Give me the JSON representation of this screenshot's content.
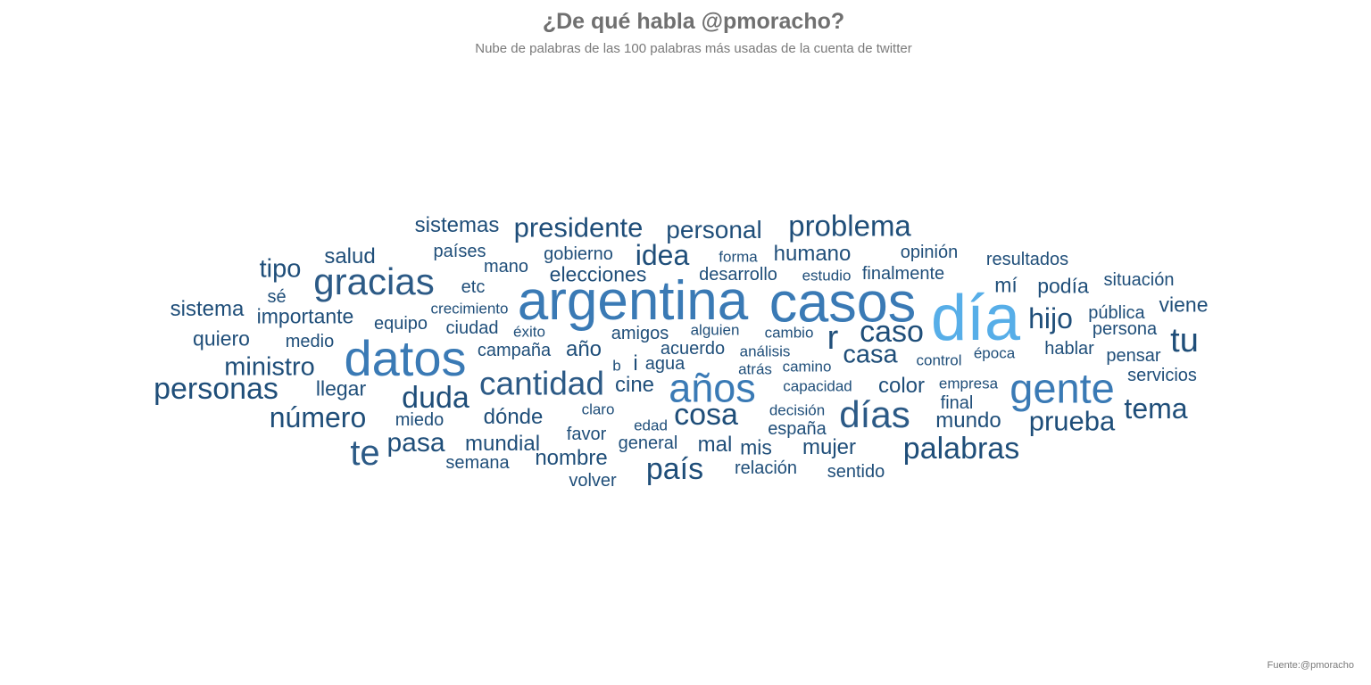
{
  "title": "¿De qué habla @pmoracho?",
  "subtitle": "Nube de palabras de las 100 palabras más usadas de la cuenta de twitter",
  "source": "Fuente:@pmoracho",
  "colors": {
    "text": "#707070",
    "dark": "#1f4e79",
    "mid": "#3a7ab5",
    "light": "#57aee8"
  },
  "chart_data": {
    "type": "wordcloud",
    "words": [
      {
        "text": "día",
        "weight": 100
      },
      {
        "text": "casos",
        "weight": 88
      },
      {
        "text": "argentina",
        "weight": 86
      },
      {
        "text": "datos",
        "weight": 78
      },
      {
        "text": "gente",
        "weight": 65
      },
      {
        "text": "años",
        "weight": 62
      },
      {
        "text": "gracias",
        "weight": 58
      },
      {
        "text": "días",
        "weight": 58
      },
      {
        "text": "te",
        "weight": 56
      },
      {
        "text": "cantidad",
        "weight": 52
      },
      {
        "text": "personas",
        "weight": 48
      },
      {
        "text": "cosa",
        "weight": 48
      },
      {
        "text": "país",
        "weight": 48
      },
      {
        "text": "palabras",
        "weight": 48
      },
      {
        "text": "tu",
        "weight": 48
      },
      {
        "text": "duda",
        "weight": 46
      },
      {
        "text": "caso",
        "weight": 46
      },
      {
        "text": "problema",
        "weight": 46
      },
      {
        "text": "r",
        "weight": 46
      },
      {
        "text": "número",
        "weight": 44
      },
      {
        "text": "idea",
        "weight": 44
      },
      {
        "text": "tema",
        "weight": 44
      },
      {
        "text": "presidente",
        "weight": 42
      },
      {
        "text": "hijo",
        "weight": 42
      },
      {
        "text": "prueba",
        "weight": 42
      },
      {
        "text": "pasa",
        "weight": 40
      },
      {
        "text": "casa",
        "weight": 40
      },
      {
        "text": "ministro",
        "weight": 40
      },
      {
        "text": "tipo",
        "weight": 40
      },
      {
        "text": "personal",
        "weight": 38
      },
      {
        "text": "dónde",
        "weight": 36
      },
      {
        "text": "año",
        "weight": 36
      },
      {
        "text": "humano",
        "weight": 34
      },
      {
        "text": "mundial",
        "weight": 34
      },
      {
        "text": "nombre",
        "weight": 34
      },
      {
        "text": "salud",
        "weight": 34
      },
      {
        "text": "color",
        "weight": 34
      },
      {
        "text": "mujer",
        "weight": 34
      },
      {
        "text": "mundo",
        "weight": 34
      },
      {
        "text": "cine",
        "weight": 34
      },
      {
        "text": "sistema",
        "weight": 34
      },
      {
        "text": "sistemas",
        "weight": 34
      },
      {
        "text": "mal",
        "weight": 34
      },
      {
        "text": "i",
        "weight": 34
      },
      {
        "text": "elecciones",
        "weight": 32
      },
      {
        "text": "importante",
        "weight": 32
      },
      {
        "text": "llegar",
        "weight": 32
      },
      {
        "text": "quiero",
        "weight": 32
      },
      {
        "text": "podía",
        "weight": 32
      },
      {
        "text": "viene",
        "weight": 32
      },
      {
        "text": "mí",
        "weight": 32
      },
      {
        "text": "mis",
        "weight": 32
      },
      {
        "text": "desarrollo",
        "weight": 30
      },
      {
        "text": "finalmente",
        "weight": 30
      },
      {
        "text": "semana",
        "weight": 30
      },
      {
        "text": "volver",
        "weight": 30
      },
      {
        "text": "campaña",
        "weight": 30
      },
      {
        "text": "ciudad",
        "weight": 30
      },
      {
        "text": "amigos",
        "weight": 30
      },
      {
        "text": "acuerdo",
        "weight": 30
      },
      {
        "text": "general",
        "weight": 30
      },
      {
        "text": "favor",
        "weight": 30
      },
      {
        "text": "gobierno",
        "weight": 30
      },
      {
        "text": "países",
        "weight": 30
      },
      {
        "text": "resultados",
        "weight": 30
      },
      {
        "text": "situación",
        "weight": 30
      },
      {
        "text": "pensar",
        "weight": 30
      },
      {
        "text": "hablar",
        "weight": 30
      },
      {
        "text": "relación",
        "weight": 30
      },
      {
        "text": "sentido",
        "weight": 30
      },
      {
        "text": "españa",
        "weight": 30
      },
      {
        "text": "opinión",
        "weight": 30
      },
      {
        "text": "persona",
        "weight": 30
      },
      {
        "text": "pública",
        "weight": 30
      },
      {
        "text": "servicios",
        "weight": 30
      },
      {
        "text": "equipo",
        "weight": 30
      },
      {
        "text": "medio",
        "weight": 30
      },
      {
        "text": "miedo",
        "weight": 30
      },
      {
        "text": "mano",
        "weight": 30
      },
      {
        "text": "etc",
        "weight": 30
      },
      {
        "text": "final",
        "weight": 30
      },
      {
        "text": "agua",
        "weight": 30
      },
      {
        "text": "sé",
        "weight": 30
      },
      {
        "text": "alguien",
        "weight": 28
      },
      {
        "text": "cambio",
        "weight": 28
      },
      {
        "text": "análisis",
        "weight": 28
      },
      {
        "text": "camino",
        "weight": 28
      },
      {
        "text": "atrás",
        "weight": 28
      },
      {
        "text": "capacidad",
        "weight": 28
      },
      {
        "text": "decisión",
        "weight": 28
      },
      {
        "text": "claro",
        "weight": 28
      },
      {
        "text": "edad",
        "weight": 28
      },
      {
        "text": "forma",
        "weight": 28
      },
      {
        "text": "estudio",
        "weight": 28
      },
      {
        "text": "control",
        "weight": 28
      },
      {
        "text": "empresa",
        "weight": 28
      },
      {
        "text": "época",
        "weight": 28
      },
      {
        "text": "éxito",
        "weight": 28
      },
      {
        "text": "crecimiento",
        "weight": 28
      },
      {
        "text": "b",
        "weight": 28
      }
    ]
  }
}
